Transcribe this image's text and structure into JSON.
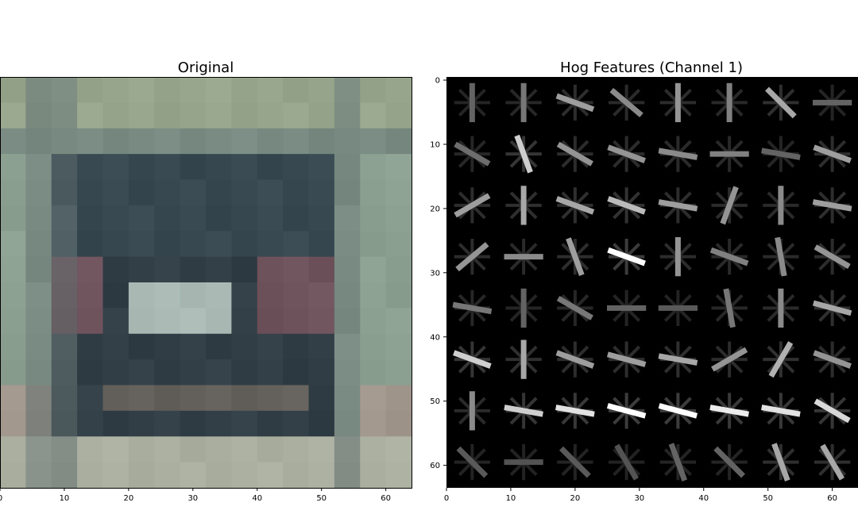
{
  "chart_data": [
    {
      "type": "heatmap",
      "title": "Original",
      "xlim": [
        0,
        64
      ],
      "ylim": [
        64,
        0
      ],
      "xticks": [
        0,
        10,
        20,
        30,
        40,
        50,
        60
      ],
      "show_y_ticks": false,
      "grid": false,
      "image_grid_size": [
        64,
        64
      ],
      "dominant_colors": [
        "#8da08f",
        "#3a4a52",
        "#2e3a40",
        "#b8c0b8",
        "#6e5a5e",
        "#a4aa9c"
      ]
    },
    {
      "type": "heatmap",
      "title": "Hog Features (Channel 1)",
      "xlim": [
        0,
        64
      ],
      "ylim": [
        64,
        0
      ],
      "xticks": [
        0,
        10,
        20,
        30,
        40,
        50,
        60
      ],
      "yticks": [
        0,
        10,
        20,
        30,
        40,
        50,
        60
      ],
      "grid": false,
      "colormap": "gray",
      "cells_per_side": 8,
      "pixels_per_cell": 8,
      "cell_orientations_deg": [
        [
          90,
          90,
          20,
          40,
          90,
          90,
          45,
          0
        ],
        [
          30,
          70,
          30,
          20,
          10,
          0,
          10,
          20
        ],
        [
          -30,
          90,
          20,
          20,
          10,
          -70,
          90,
          10
        ],
        [
          -40,
          0,
          70,
          20,
          90,
          20,
          80,
          30
        ],
        [
          10,
          90,
          30,
          0,
          0,
          80,
          90,
          15
        ],
        [
          20,
          90,
          20,
          15,
          10,
          -30,
          -60,
          20
        ],
        [
          90,
          10,
          10,
          15,
          15,
          10,
          10,
          30
        ],
        [
          45,
          0,
          45,
          60,
          70,
          45,
          70,
          60
        ]
      ],
      "cell_strength": [
        [
          0.2,
          0.3,
          0.5,
          0.4,
          0.45,
          0.35,
          0.55,
          0.2
        ],
        [
          0.25,
          0.75,
          0.45,
          0.45,
          0.4,
          0.35,
          0.2,
          0.5
        ],
        [
          0.5,
          0.55,
          0.55,
          0.65,
          0.5,
          0.45,
          0.4,
          0.5
        ],
        [
          0.45,
          0.4,
          0.5,
          1.0,
          0.45,
          0.35,
          0.4,
          0.45
        ],
        [
          0.3,
          0.2,
          0.3,
          0.2,
          0.15,
          0.3,
          0.4,
          0.55
        ],
        [
          0.75,
          0.55,
          0.5,
          0.5,
          0.55,
          0.45,
          0.6,
          0.45
        ],
        [
          0.4,
          0.75,
          0.85,
          1.0,
          1.0,
          0.9,
          0.85,
          0.8
        ],
        [
          0.15,
          0.12,
          0.15,
          0.12,
          0.2,
          0.2,
          0.55,
          0.55
        ]
      ]
    }
  ]
}
